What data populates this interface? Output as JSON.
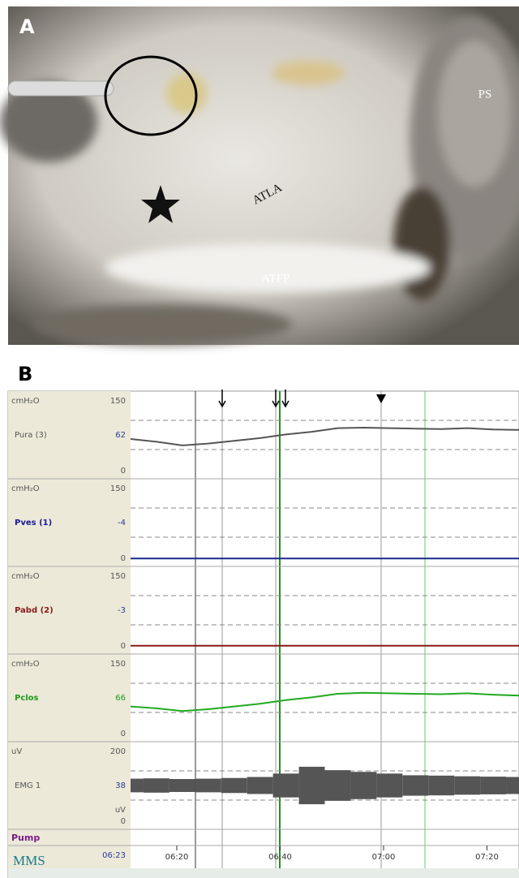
{
  "panel_a": {
    "label": "A",
    "annotations": [
      "ATLA",
      "ATFP",
      "PS"
    ]
  },
  "panel_b": {
    "label": "B",
    "channels": [
      {
        "unit": "cmH₂O",
        "scale": [
          0,
          150
        ],
        "name": "Pura (3)",
        "reading": 62,
        "name_color": "#555555",
        "reading_color": "#2a3a9a",
        "color": "#555555",
        "trace": [
          66,
          60,
          52,
          56,
          62,
          68,
          76,
          82,
          90,
          91,
          90,
          89,
          88,
          90,
          87,
          86
        ]
      },
      {
        "unit": "cmH₂O",
        "scale": [
          0,
          150
        ],
        "name": "Pves (1)",
        "reading": -4,
        "name_color": "#1a1a9a",
        "reading_color": "#2a3a9a",
        "color": "#1a2a8a",
        "trace": [
          -4,
          -4,
          -4,
          -4,
          -4,
          -4,
          -4,
          -4,
          -4,
          -4,
          -4,
          -4,
          -4,
          -4,
          -4,
          -4
        ]
      },
      {
        "unit": "cmH₂O",
        "scale": [
          0,
          150
        ],
        "name": "Pabd (2)",
        "reading": -3,
        "name_color": "#8a1a1a",
        "reading_color": "#2a3a9a",
        "color": "#8a1a1a",
        "trace": [
          -3,
          -3,
          -3,
          -3,
          -3,
          -3,
          -3,
          -3,
          -3,
          -3,
          -3,
          -3,
          -3,
          -3,
          -3,
          -3
        ]
      },
      {
        "unit": "cmH₂O",
        "scale": [
          0,
          150
        ],
        "name": "Pclos",
        "reading": 66,
        "name_color": "#1a9a1a",
        "reading_color": "#1a9a1a",
        "color": "#22aa22",
        "trace": [
          56,
          52,
          46,
          50,
          56,
          62,
          70,
          76,
          84,
          86,
          85,
          84,
          83,
          85,
          82,
          80
        ]
      },
      {
        "unit": "uV",
        "unit_bottom": "uV",
        "scale": [
          0,
          200
        ],
        "name": "EMG 1",
        "reading": 38,
        "name_color": "#555555",
        "reading_color": "#2a3a9a",
        "color": "#555555",
        "style": "band",
        "trace": [
          40,
          42,
          38,
          40,
          44,
          50,
          70,
          110,
          90,
          80,
          70,
          60,
          58,
          54,
          52,
          50
        ]
      }
    ],
    "pump": "Pump",
    "logo": "MMS",
    "clock": "06:23",
    "time_ticks": [
      "06:20",
      "06:40",
      "07:00",
      "07:20"
    ]
  }
}
